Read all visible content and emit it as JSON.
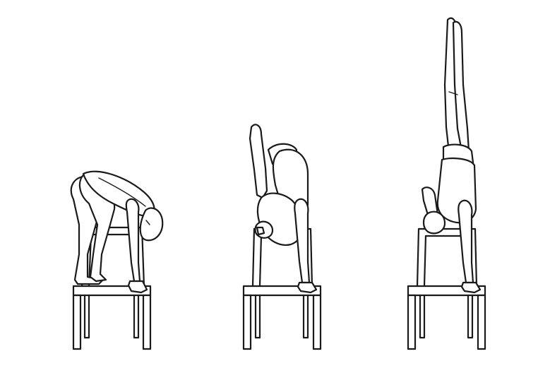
{
  "illustration": {
    "line_color": "#1a1a1a",
    "background_color": "#ffffff",
    "figures": [
      {
        "stage": 1,
        "pose": "crouch-on-chair-seat"
      },
      {
        "stage": 2,
        "pose": "tucked-on-chair-back"
      },
      {
        "stage": 3,
        "pose": "handstand-on-chair-back"
      }
    ]
  }
}
